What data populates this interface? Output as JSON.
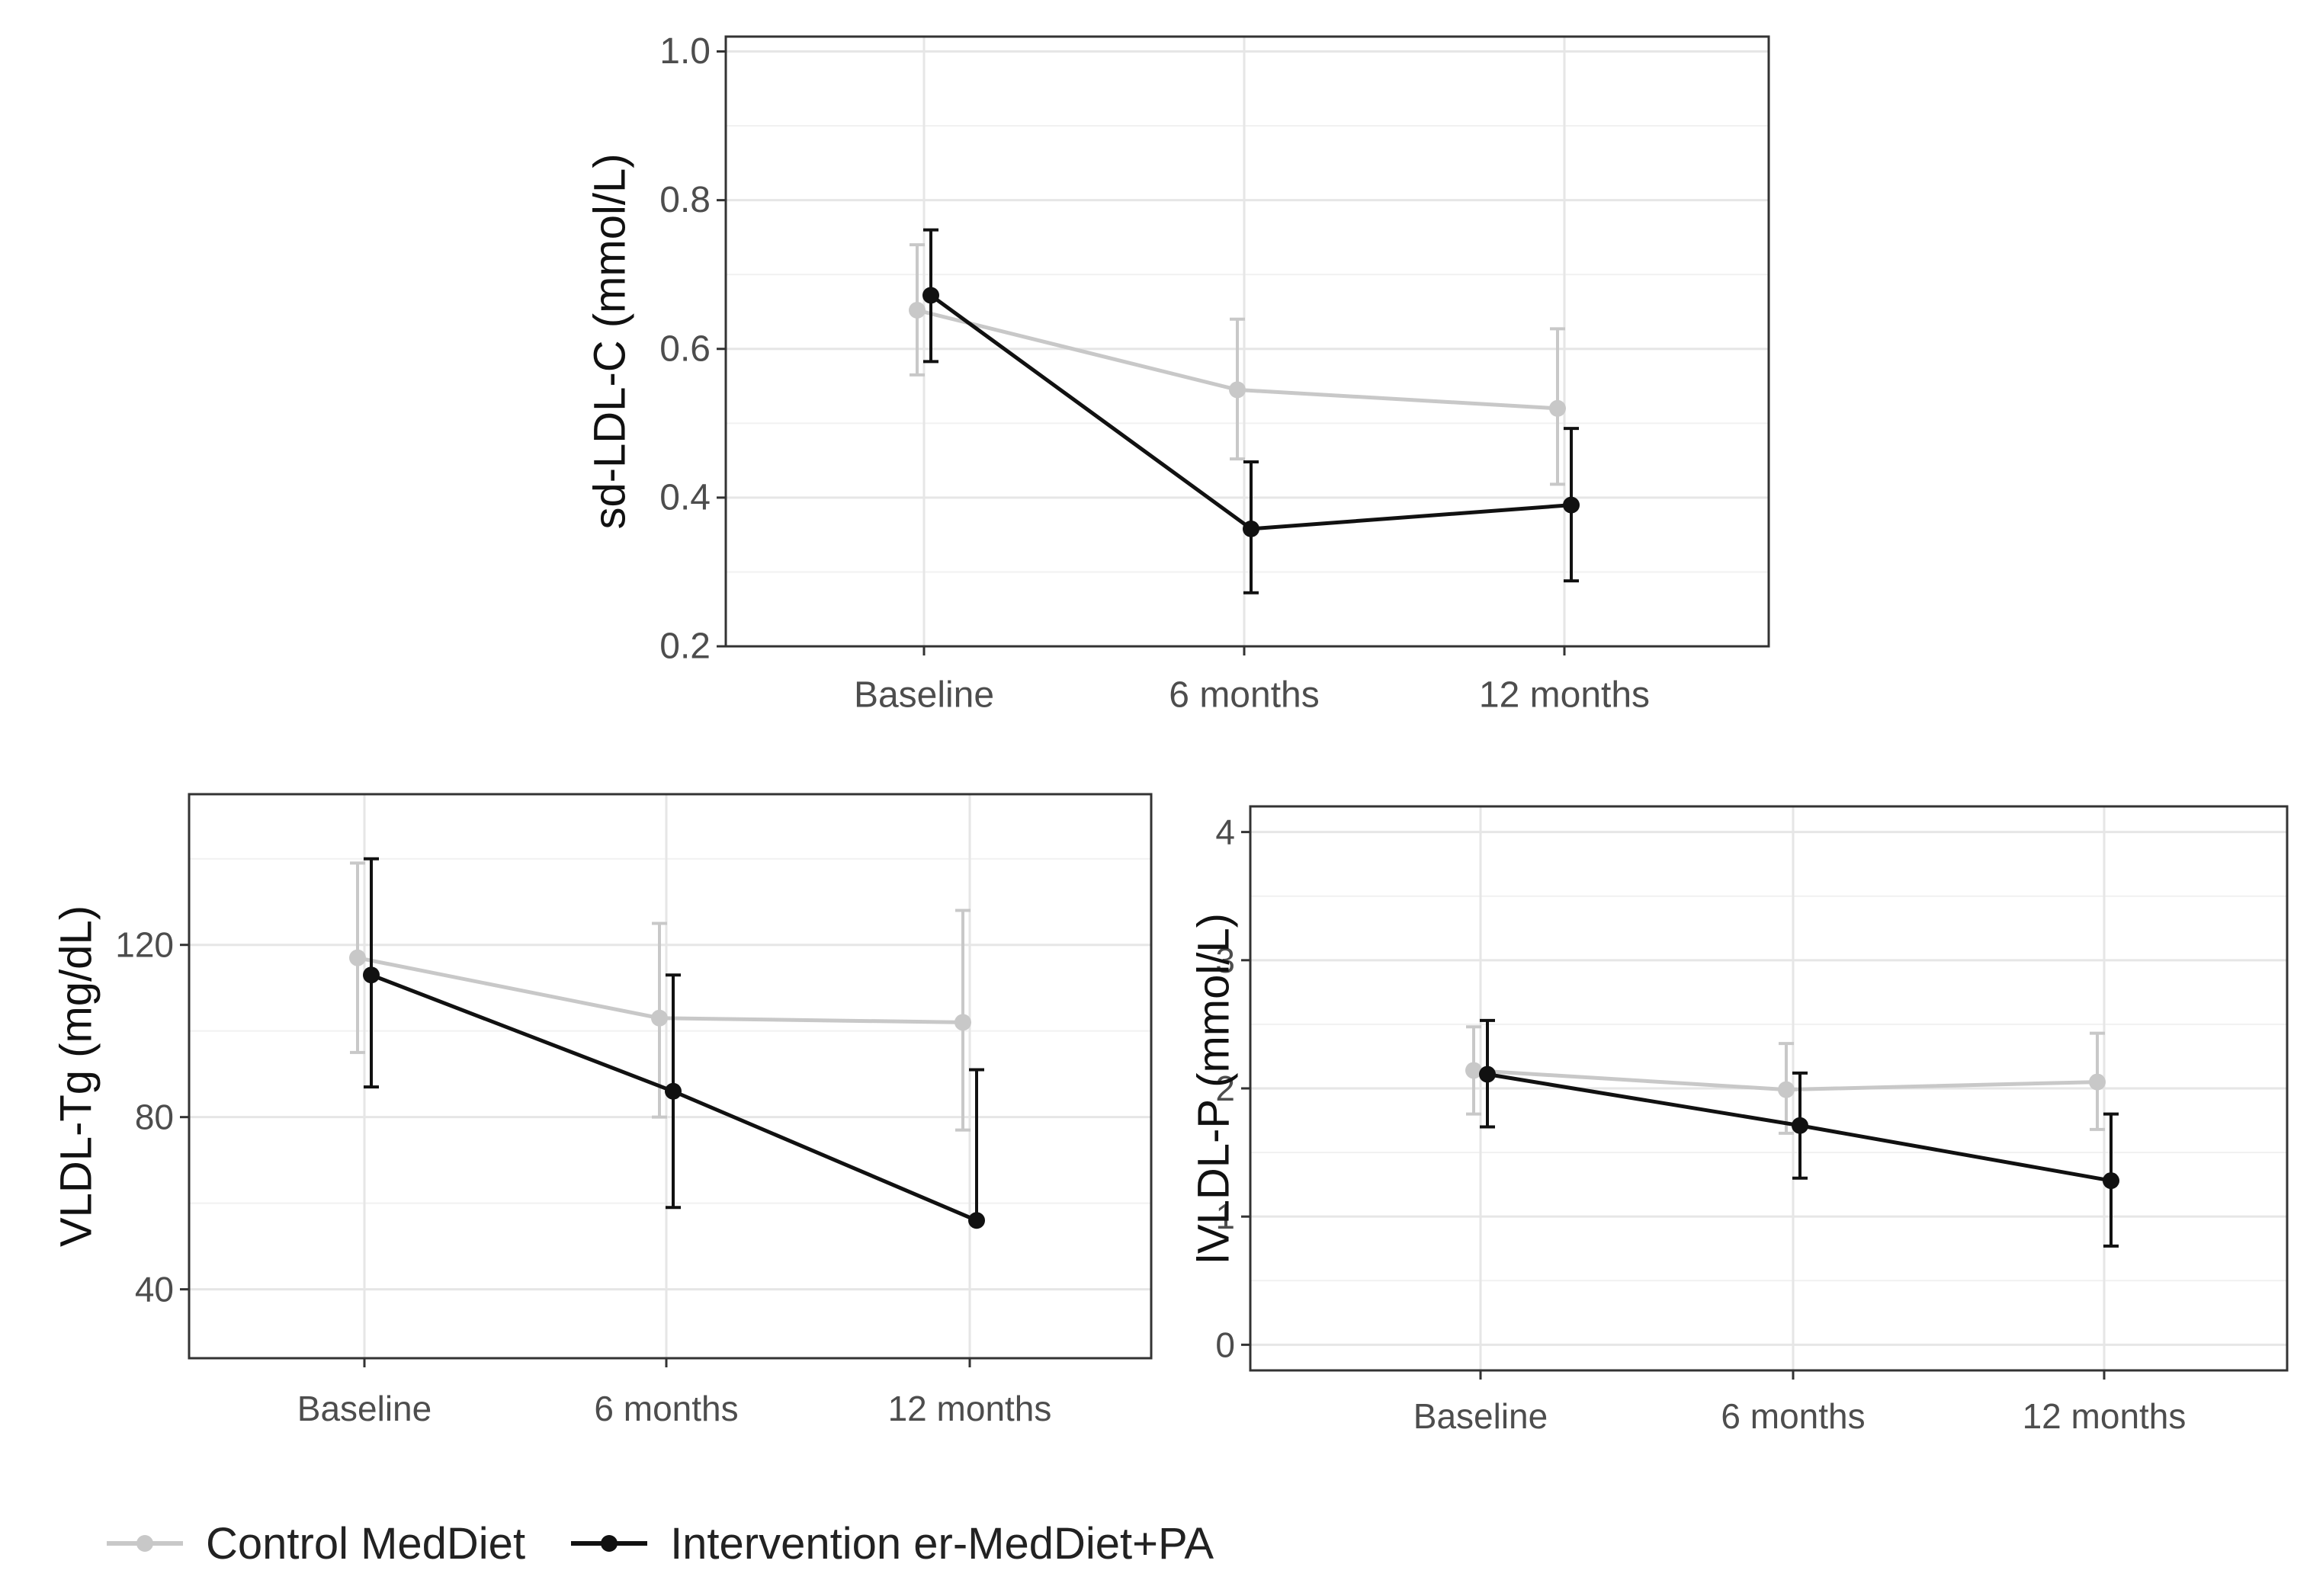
{
  "colors": {
    "control": "#c8c8c8",
    "intervention": "#111111",
    "grid": "#e6e6e6",
    "panel_border": "#333333",
    "tick_text": "#4d4d4d",
    "axis_title": "#111111"
  },
  "legend": {
    "items": [
      {
        "label": "Control MedDiet",
        "series": "control"
      },
      {
        "label": "Intervention er-MedDiet+PA",
        "series": "intervention"
      }
    ]
  },
  "chart_data": [
    {
      "type": "line",
      "panel": "top",
      "title": "",
      "xlabel": "",
      "ylabel": "sd-LDL-C (mmol/L)",
      "categories": [
        "Baseline",
        "6 months",
        "12 months"
      ],
      "ylim": [
        0.2,
        1.02
      ],
      "yticks": [
        0.2,
        0.4,
        0.6,
        0.8,
        1.0
      ],
      "ytick_labels": [
        "0.2",
        "0.4",
        "0.6",
        "0.8",
        "1.0"
      ],
      "grid": true,
      "series": [
        {
          "name": "Control MedDiet",
          "key": "control",
          "values": [
            0.652,
            0.545,
            0.52
          ],
          "lower": [
            0.565,
            0.452,
            0.418
          ],
          "upper": [
            0.74,
            0.64,
            0.627
          ]
        },
        {
          "name": "Intervention er-MedDiet+PA",
          "key": "intervention",
          "values": [
            0.672,
            0.358,
            0.39
          ],
          "lower": [
            0.583,
            0.272,
            0.288
          ],
          "upper": [
            0.76,
            0.448,
            0.493
          ]
        }
      ]
    },
    {
      "type": "line",
      "panel": "bottom-left",
      "title": "",
      "xlabel": "",
      "ylabel": "VLDL-Tg (mg/dL)",
      "categories": [
        "Baseline",
        "6 months",
        "12 months"
      ],
      "ylim": [
        24,
        155
      ],
      "yticks": [
        40,
        80,
        120
      ],
      "ytick_labels": [
        "40",
        "80",
        "120"
      ],
      "grid": true,
      "series": [
        {
          "name": "Control MedDiet",
          "key": "control",
          "values": [
            117,
            103,
            102
          ],
          "lower": [
            95,
            80,
            77
          ],
          "upper": [
            139,
            125,
            128
          ]
        },
        {
          "name": "Intervention er-MedDiet+PA",
          "key": "intervention",
          "values": [
            113,
            86,
            56
          ],
          "lower": [
            87,
            59,
            56
          ],
          "upper": [
            140,
            113,
            91
          ]
        }
      ]
    },
    {
      "type": "line",
      "panel": "bottom-right",
      "title": "",
      "xlabel": "",
      "ylabel": "lVLDL-P (mmol/L)",
      "categories": [
        "Baseline",
        "6 months",
        "12 months"
      ],
      "ylim": [
        -0.2,
        4.2
      ],
      "yticks": [
        0,
        1,
        2,
        3,
        4
      ],
      "ytick_labels": [
        "0",
        "1",
        "2",
        "3",
        "4"
      ],
      "grid": true,
      "series": [
        {
          "name": "Control MedDiet",
          "key": "control",
          "values": [
            2.14,
            1.99,
            2.05
          ],
          "lower": [
            1.8,
            1.65,
            1.68
          ],
          "upper": [
            2.48,
            2.35,
            2.43
          ]
        },
        {
          "name": "Intervention er-MedDiet+PA",
          "key": "intervention",
          "values": [
            2.11,
            1.71,
            1.28
          ],
          "lower": [
            1.7,
            1.3,
            0.77
          ],
          "upper": [
            2.53,
            2.12,
            1.8
          ]
        }
      ]
    }
  ]
}
